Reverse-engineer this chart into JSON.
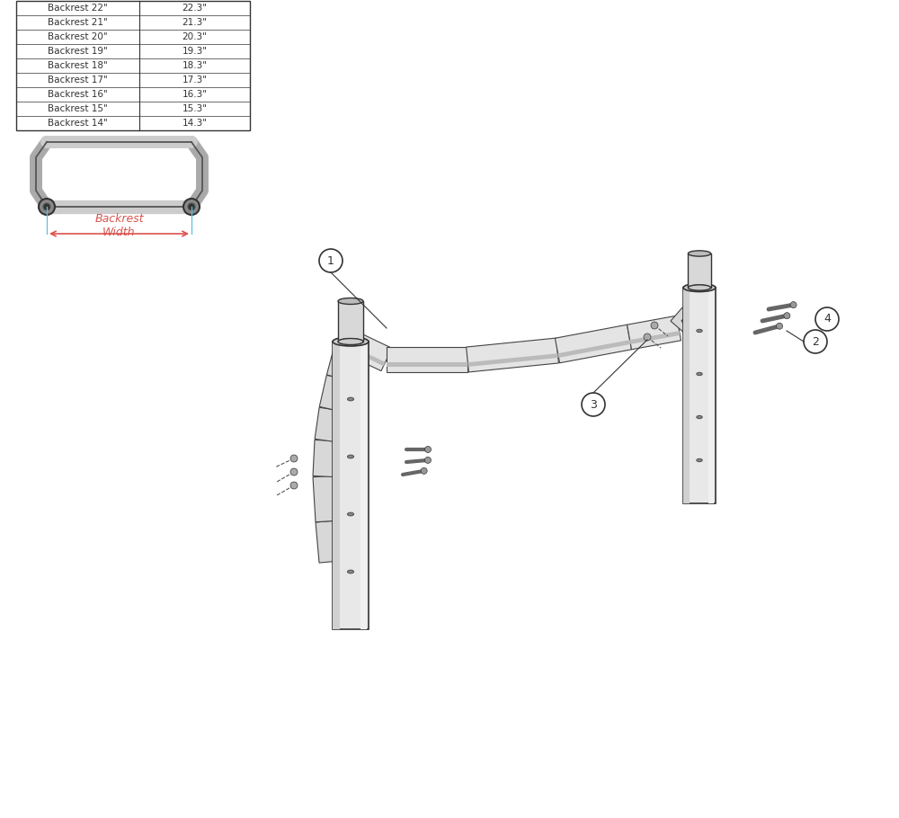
{
  "bg_color": "#ffffff",
  "table_data": [
    [
      "Backrest 14\"",
      "14.3\""
    ],
    [
      "Backrest 15\"",
      "15.3\""
    ],
    [
      "Backrest 16\"",
      "16.3\""
    ],
    [
      "Backrest 17\"",
      "17.3\""
    ],
    [
      "Backrest 18\"",
      "18.3\""
    ],
    [
      "Backrest 19\"",
      "19.3\""
    ],
    [
      "Backrest 20\"",
      "20.3\""
    ],
    [
      "Backrest 21\"",
      "21.3\""
    ],
    [
      "Backrest 22\"",
      "22.3\""
    ]
  ],
  "backrest_width_label": "Backrest\nWidth",
  "backrest_width_color": "#d9534f",
  "dimension_line_color": "#5bc0de",
  "line_color": "#333333",
  "fill_color": "#cccccc",
  "dark_color": "#444444",
  "bar_fc": "#e4e4e4",
  "bar_ec": "#444444",
  "post_fc": "#e8e8e8",
  "post_shade": "#d0d0d0",
  "post_highlight": "#f0f0f0",
  "post_top_fc": "#cccccc",
  "post_inner_fc": "#888888",
  "cap_fc": "#d8d8d8",
  "cap_top_fc": "#bbbbbb",
  "screw_color": "#666666",
  "screw_head_fc": "#999999"
}
